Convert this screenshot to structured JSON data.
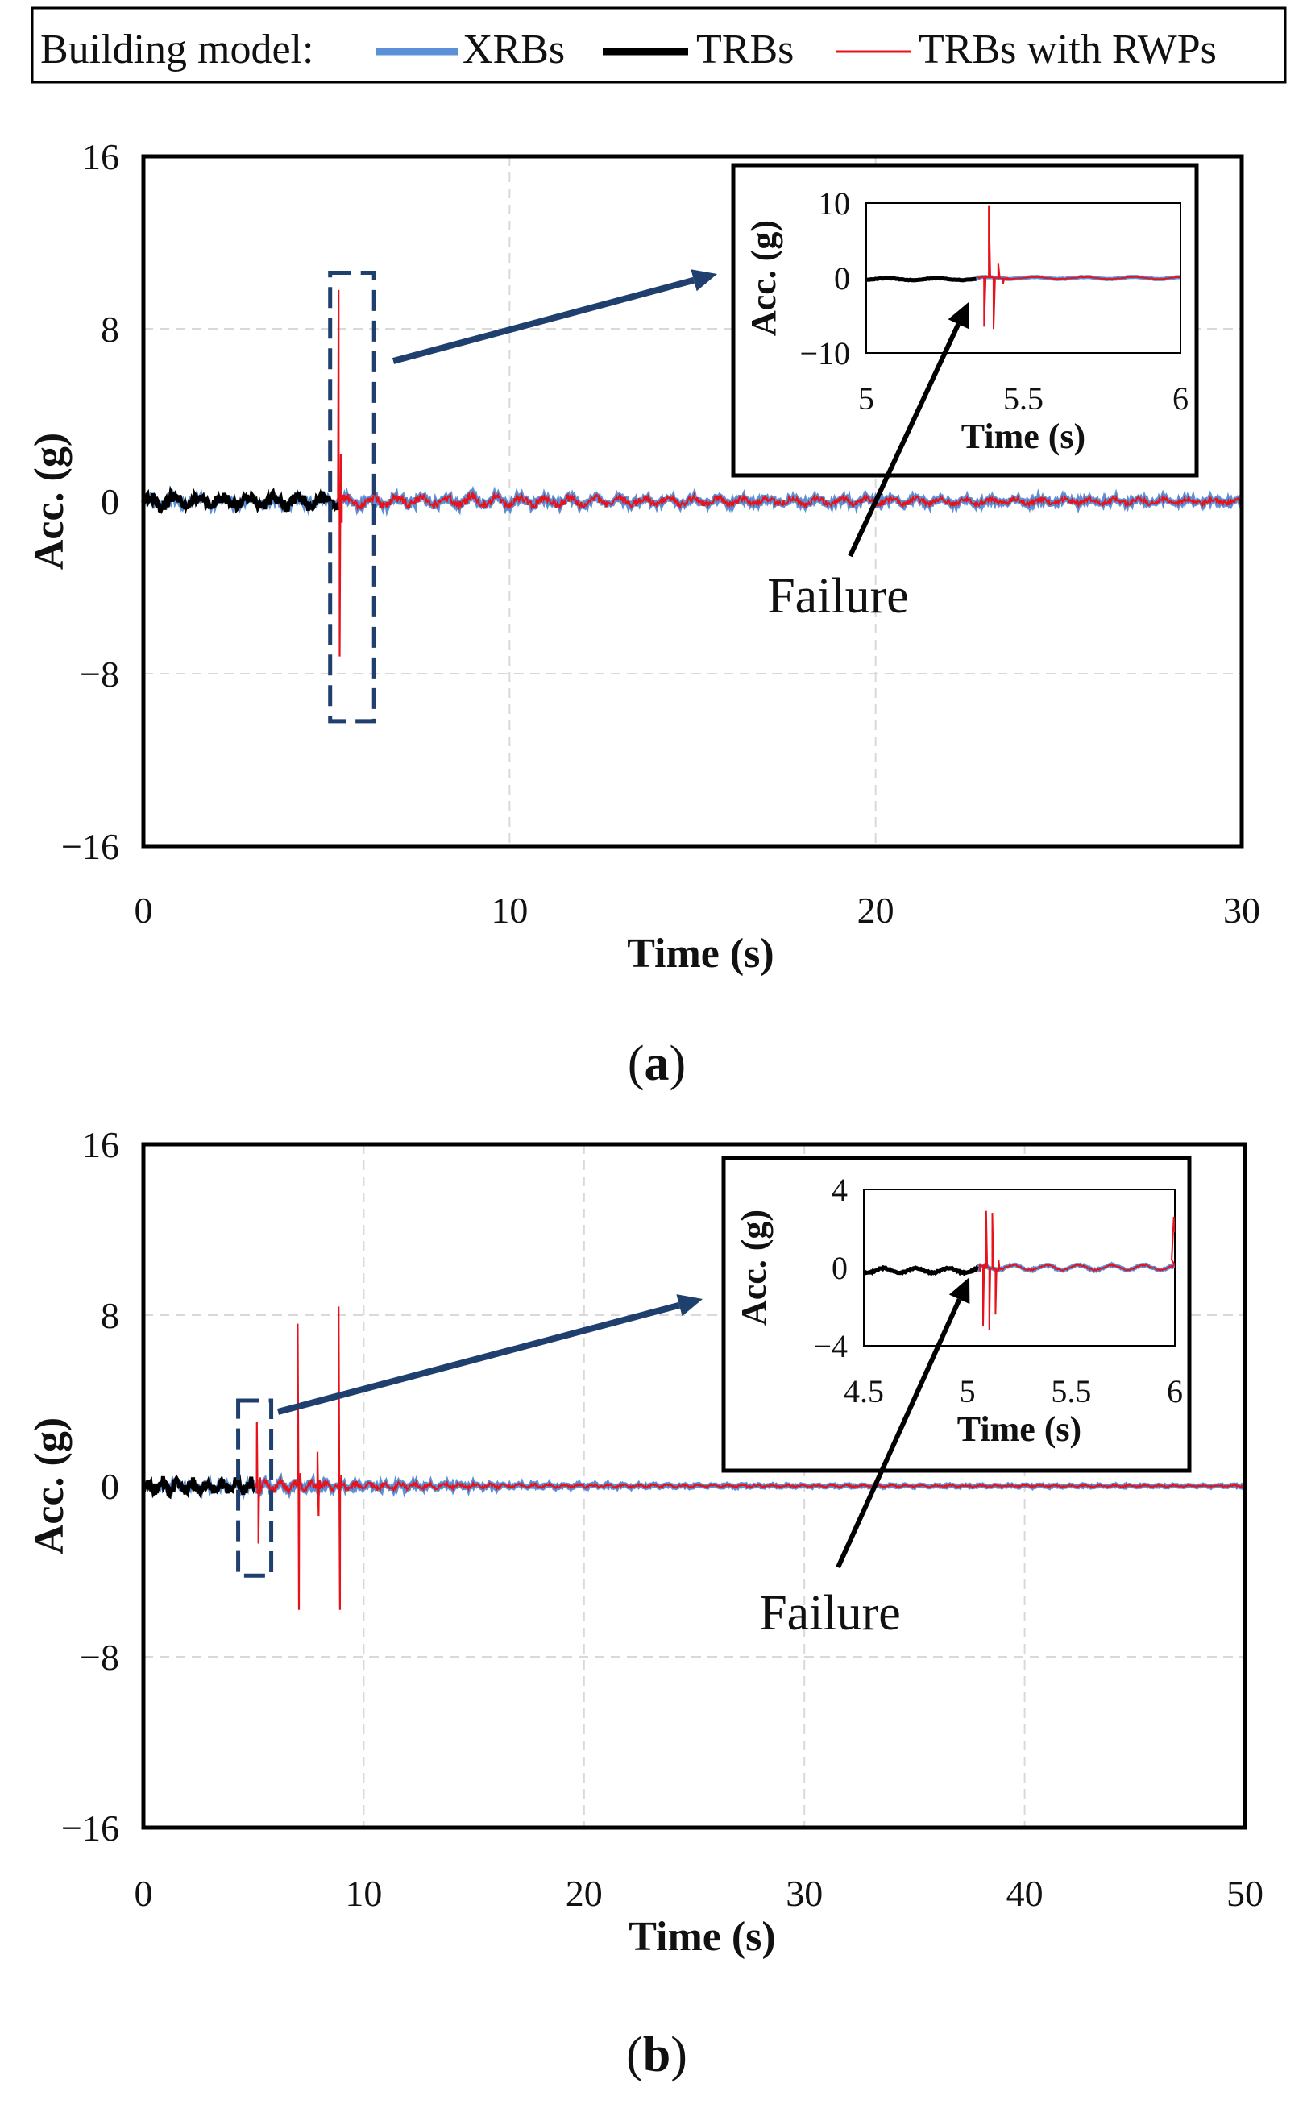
{
  "legend": {
    "title": "Building model:",
    "entries": [
      {
        "name": "XRBs",
        "color": "#5b8fd6"
      },
      {
        "name": "TRBs",
        "color": "#000000"
      },
      {
        "name": "TRBs with RWPs",
        "color": "#e8121b"
      }
    ]
  },
  "chart_data": [
    {
      "panel": "(a)",
      "panel_letter": "a",
      "type": "line",
      "xlabel": "Time (s)",
      "ylabel": "Acc. (g)",
      "xlim": [
        0,
        30
      ],
      "ylim": [
        -16,
        16
      ],
      "xticks": [
        "0",
        "10",
        "20",
        "30"
      ],
      "yticks": [
        "16",
        "8",
        "0",
        "−8",
        "−16"
      ],
      "grid": true,
      "series": [
        {
          "name": "XRBs",
          "description": "small oscillations about 0 over 0–30 s",
          "x": [
            0,
            5.35,
            30
          ],
          "y": [
            0,
            0.2,
            0
          ]
        },
        {
          "name": "TRBs",
          "description": "noise about 0 until failure near 5.35 s",
          "x": [
            0,
            5.35
          ],
          "y": [
            0,
            0
          ]
        },
        {
          "name": "TRBs with RWPs",
          "description": "spike at failure, peak ~10 g",
          "x": [
            5.3,
            5.38,
            5.42,
            5.47,
            30
          ],
          "y": [
            0,
            9.8,
            -7.2,
            2.2,
            0
          ]
        }
      ],
      "highlight_box": {
        "x": [
          5.1,
          6.3
        ],
        "y": [
          -10.2,
          10.6
        ]
      },
      "annotation": "Failure",
      "inset": {
        "xlabel": "Time (s)",
        "ylabel": "Acc. (g)",
        "xlim": [
          5,
          6
        ],
        "ylim": [
          -10,
          10
        ],
        "xticks": [
          "5",
          "5.5",
          "6"
        ],
        "yticks": [
          "10",
          "0",
          "−10"
        ]
      }
    },
    {
      "panel": "(b)",
      "panel_letter": "b",
      "type": "line",
      "xlabel": "Time (s)",
      "ylabel": "Acc. (g)",
      "xlim": [
        0,
        50
      ],
      "ylim": [
        -16,
        16
      ],
      "xticks": [
        "0",
        "10",
        "20",
        "30",
        "40",
        "50"
      ],
      "yticks": [
        "16",
        "8",
        "0",
        "−8",
        "−16"
      ],
      "grid": true,
      "series": [
        {
          "name": "XRBs",
          "description": "small oscillations about 0 over 0–50 s",
          "x": [
            0,
            5.05,
            50
          ],
          "y": [
            0,
            0.3,
            0
          ]
        },
        {
          "name": "TRBs",
          "description": "noise about 0 until failure near 5.05 s",
          "x": [
            0,
            5.05
          ],
          "y": [
            0,
            0
          ]
        },
        {
          "name": "TRBs with RWPs",
          "description": "repeated spikes after failure",
          "x": [
            5.1,
            5.2,
            7.0,
            7.1,
            8.8,
            8.9,
            50
          ],
          "y": [
            3.0,
            -3.0,
            7.6,
            -5.8,
            8.4,
            -5.8,
            0
          ]
        }
      ],
      "highlight_box": {
        "x": [
          4.3,
          5.8
        ],
        "y": [
          -4.2,
          4.0
        ]
      },
      "annotation": "Failure",
      "inset": {
        "xlabel": "Time (s)",
        "ylabel": "Acc. (g)",
        "xlim": [
          4.5,
          6
        ],
        "ylim": [
          -4,
          4
        ],
        "xticks": [
          "4.5",
          "5",
          "5.5",
          "6"
        ],
        "yticks": [
          "4",
          "0",
          "−4"
        ]
      }
    }
  ]
}
